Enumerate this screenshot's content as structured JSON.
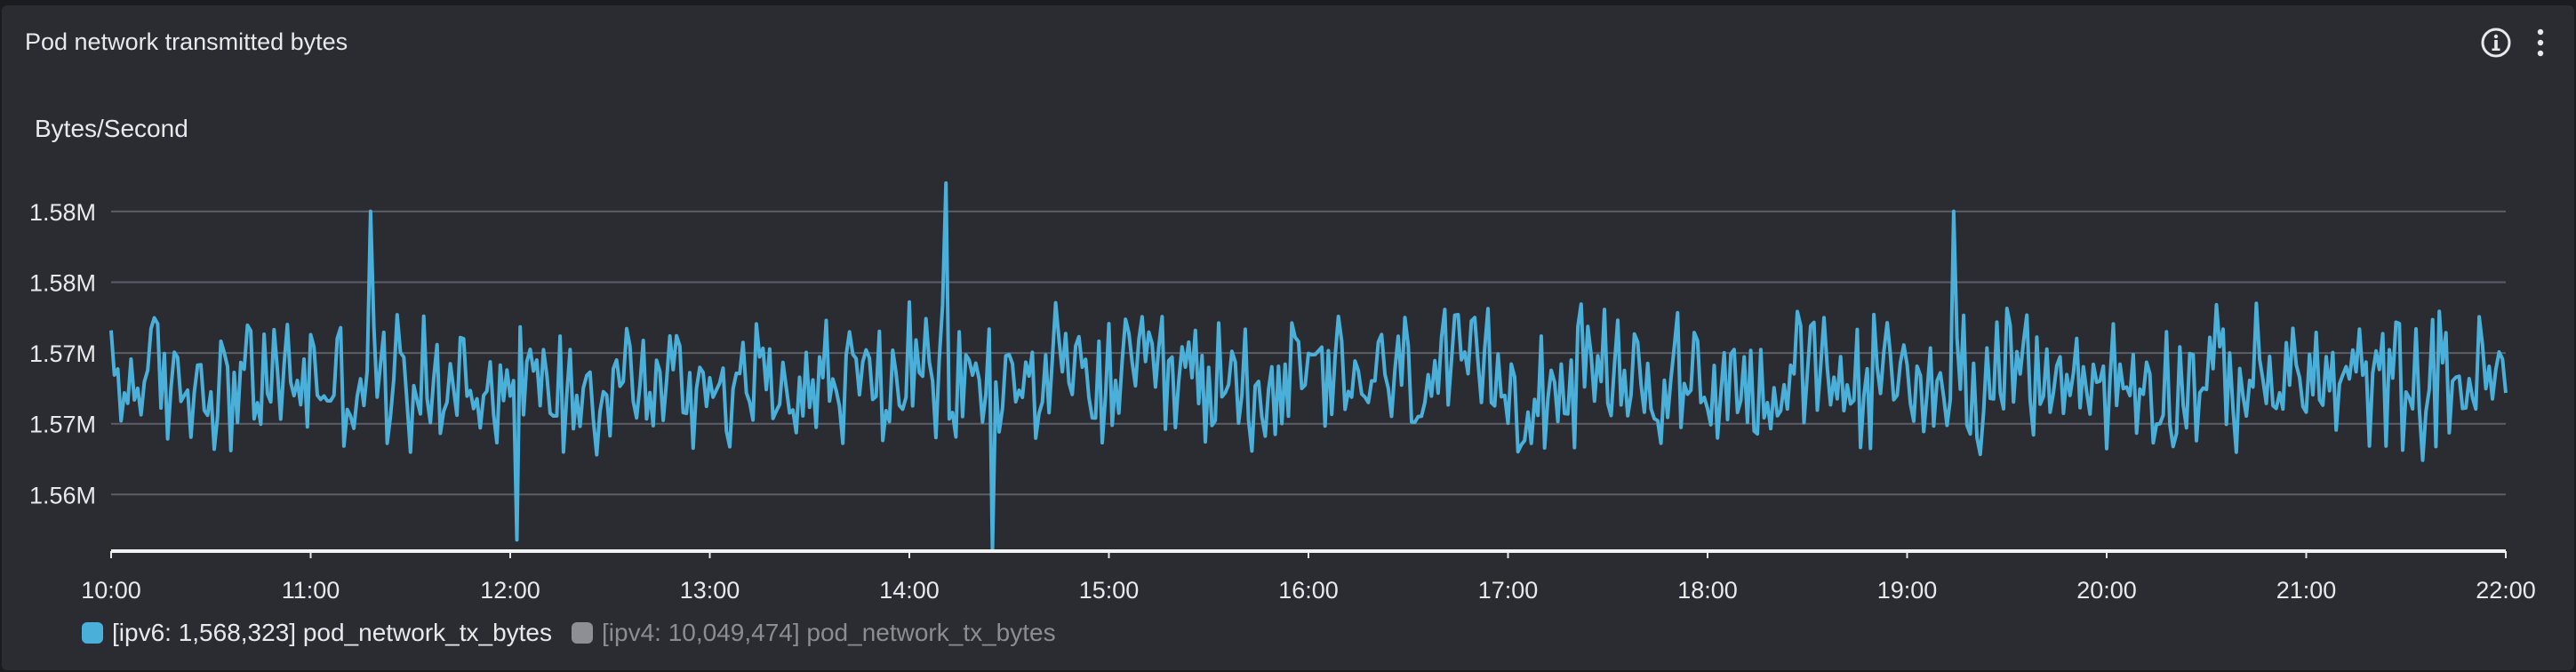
{
  "panel": {
    "title": "Pod network transmitted bytes",
    "info_icon": "info-circle-icon",
    "more_icon": "vertical-ellipsis-icon"
  },
  "legend": {
    "items": [
      {
        "label": "[ipv6: 1,568,323] pod_network_tx_bytes",
        "color": "#4bb0d9",
        "active": true
      },
      {
        "label": "[ipv4: 10,049,474] pod_network_tx_bytes",
        "color": "#8d8f95",
        "active": false
      }
    ]
  },
  "colors": {
    "background": "#2a2c32",
    "grid": "#5b5e66",
    "text": "#e8e9ea",
    "series": "#4bb0d9"
  },
  "chart_data": {
    "type": "line",
    "title": "",
    "xlabel": "",
    "ylabel": "Bytes/Second",
    "x_ticks": [
      "10:00",
      "11:00",
      "12:00",
      "13:00",
      "14:00",
      "15:00",
      "16:00",
      "17:00",
      "18:00",
      "19:00",
      "20:00",
      "21:00",
      "22:00"
    ],
    "y_ticks": [
      {
        "value": 1565000,
        "label": "1.56M"
      },
      {
        "value": 1567500,
        "label": "1.57M"
      },
      {
        "value": 1570000,
        "label": "1.57M"
      },
      {
        "value": 1572500,
        "label": "1.58M"
      },
      {
        "value": 1575000,
        "label": "1.58M"
      }
    ],
    "ylim": [
      1563000,
      1576000
    ],
    "xlim_hours": [
      10,
      22
    ],
    "grid": true,
    "legend_position": "bottom-left",
    "series": [
      {
        "name": "[ipv6: 1,568,323] pod_network_tx_bytes",
        "interval_minutes": 1,
        "y_center": 1569000,
        "y_amplitude": 3000,
        "spikes": [
          {
            "time": "11:18",
            "value": 1575000
          },
          {
            "time": "12:02",
            "value": 1563400
          },
          {
            "time": "14:11",
            "value": 1576000
          },
          {
            "time": "14:25",
            "value": 1563000
          },
          {
            "time": "19:14",
            "value": 1575000
          }
        ]
      },
      {
        "name": "[ipv4: 10,049,474] pod_network_tx_bytes",
        "hidden": true
      }
    ]
  }
}
